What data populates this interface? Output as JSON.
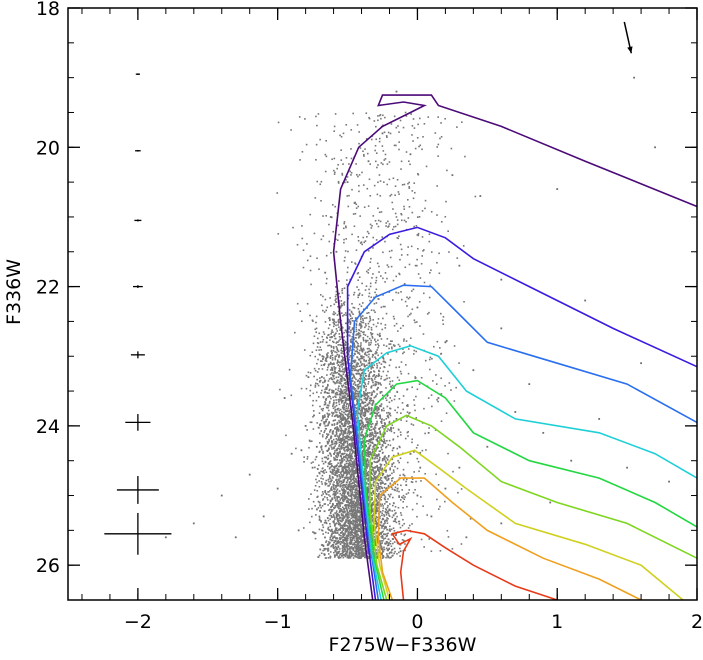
{
  "chart_data": {
    "type": "scatter",
    "title": "",
    "xlabel": "F275W−F336W",
    "ylabel": "F336W",
    "xlim": [
      -2.5,
      2.0
    ],
    "ylim": [
      26.5,
      18.0
    ],
    "y_inverted": true,
    "grid": false,
    "legend": "none",
    "x_ticks": [
      {
        "value": -2,
        "label": "−2"
      },
      {
        "value": -1,
        "label": "−1"
      },
      {
        "value": 0,
        "label": "0"
      },
      {
        "value": 1,
        "label": "1"
      },
      {
        "value": 2,
        "label": "2"
      }
    ],
    "y_ticks": [
      {
        "value": 18,
        "label": "18"
      },
      {
        "value": 20,
        "label": "20"
      },
      {
        "value": 22,
        "label": "22"
      },
      {
        "value": 24,
        "label": "24"
      },
      {
        "value": 26,
        "label": "26"
      }
    ],
    "scatter_points": [
      [
        -0.55,
        24.2
      ],
      [
        -0.62,
        24.8
      ],
      [
        -0.45,
        23.8
      ],
      [
        -0.7,
        25.1
      ],
      [
        -0.38,
        24.5
      ],
      [
        -0.5,
        25.3
      ],
      [
        -0.6,
        23.5
      ],
      [
        -0.42,
        24.0
      ],
      [
        -0.75,
        24.6
      ],
      [
        -0.3,
        24.9
      ],
      [
        -0.2,
        25.2
      ],
      [
        -0.1,
        24.7
      ],
      [
        0.0,
        25.0
      ],
      [
        -0.65,
        22.8
      ],
      [
        -0.55,
        22.3
      ],
      [
        -0.48,
        21.9
      ],
      [
        -0.58,
        21.5
      ],
      [
        -0.45,
        20.8
      ],
      [
        -0.35,
        20.2
      ],
      [
        -0.25,
        19.8
      ],
      [
        -0.8,
        24.0
      ],
      [
        -0.9,
        24.4
      ],
      [
        -1.0,
        24.9
      ],
      [
        -1.1,
        25.3
      ],
      [
        -0.85,
        25.5
      ],
      [
        -0.6,
        25.6
      ],
      [
        -0.4,
        25.7
      ],
      [
        -0.2,
        25.5
      ],
      [
        0.1,
        25.3
      ],
      [
        0.2,
        24.9
      ],
      [
        0.3,
        24.6
      ],
      [
        0.5,
        24.3
      ],
      [
        0.7,
        23.8
      ],
      [
        0.9,
        24.1
      ],
      [
        1.1,
        24.5
      ],
      [
        0.4,
        23.2
      ],
      [
        0.2,
        22.8
      ],
      [
        0.0,
        22.3
      ],
      [
        0.3,
        21.7
      ],
      [
        0.6,
        22.6
      ],
      [
        0.8,
        23.4
      ],
      [
        1.3,
        23.9
      ],
      [
        1.5,
        24.6
      ],
      [
        0.15,
        23.6
      ],
      [
        -0.15,
        23.9
      ],
      [
        -0.3,
        23.3
      ],
      [
        -0.68,
        23.0
      ],
      [
        -0.72,
        24.3
      ],
      [
        -0.52,
        24.6
      ],
      [
        -0.44,
        25.1
      ],
      [
        -0.33,
        24.2
      ],
      [
        -0.25,
        24.0
      ],
      [
        -0.05,
        24.4
      ],
      [
        0.08,
        24.1
      ],
      [
        -0.95,
        23.6
      ],
      [
        -1.2,
        24.7
      ],
      [
        -1.4,
        25.0
      ],
      [
        -1.6,
        25.4
      ],
      [
        -1.8,
        25.6
      ],
      [
        -1.3,
        25.6
      ],
      [
        -0.78,
        23.3
      ],
      [
        -0.66,
        21.8
      ],
      [
        -0.62,
        21.0
      ],
      [
        -0.5,
        20.5
      ],
      [
        0.45,
        20.7
      ],
      [
        1.0,
        20.6
      ],
      [
        1.7,
        20.0
      ],
      [
        1.55,
        19.0
      ],
      [
        -0.15,
        19.2
      ],
      [
        -0.05,
        20.1
      ],
      [
        0.25,
        20.4
      ],
      [
        0.6,
        21.9
      ],
      [
        1.2,
        22.2
      ],
      [
        1.6,
        23.1
      ],
      [
        1.8,
        24.8
      ],
      [
        0.95,
        25.1
      ],
      [
        0.6,
        25.4
      ],
      [
        0.35,
        25.6
      ],
      [
        -0.12,
        25.8
      ],
      [
        -0.35,
        25.9
      ],
      [
        -0.57,
        24.05
      ],
      [
        -0.49,
        24.45
      ],
      [
        -0.41,
        24.65
      ],
      [
        -0.53,
        23.75
      ],
      [
        -0.63,
        24.55
      ],
      [
        -0.36,
        24.15
      ],
      [
        -0.46,
        23.45
      ],
      [
        -0.59,
        25.0
      ],
      [
        -0.7,
        25.35
      ],
      [
        -0.28,
        25.35
      ],
      [
        -0.18,
        24.55
      ],
      [
        -0.08,
        24.85
      ],
      [
        0.02,
        24.6
      ],
      [
        -0.74,
        23.85
      ],
      [
        -0.83,
        24.35
      ],
      [
        -0.66,
        24.95
      ]
    ],
    "isochrones": [
      {
        "color": "#4b0a78",
        "points": [
          [
            -0.32,
            26.5
          ],
          [
            -0.38,
            25.6
          ],
          [
            -0.46,
            24.0
          ],
          [
            -0.55,
            22.5
          ],
          [
            -0.6,
            21.5
          ],
          [
            -0.55,
            20.6
          ],
          [
            -0.42,
            20.0
          ],
          [
            -0.25,
            19.7
          ],
          [
            -0.05,
            19.5
          ],
          [
            0.05,
            19.4
          ],
          [
            -0.1,
            19.35
          ],
          [
            -0.28,
            19.4
          ],
          [
            -0.25,
            19.25
          ],
          [
            0.1,
            19.25
          ],
          [
            0.15,
            19.4
          ],
          [
            0.6,
            19.7
          ],
          [
            1.2,
            20.2
          ],
          [
            2.0,
            20.85
          ]
        ]
      },
      {
        "color": "#3a1be0",
        "points": [
          [
            -0.3,
            26.5
          ],
          [
            -0.36,
            25.6
          ],
          [
            -0.43,
            24.3
          ],
          [
            -0.5,
            23.0
          ],
          [
            -0.5,
            22.0
          ],
          [
            -0.38,
            21.5
          ],
          [
            -0.2,
            21.25
          ],
          [
            0.0,
            21.15
          ],
          [
            0.2,
            21.3
          ],
          [
            0.4,
            21.6
          ],
          [
            0.8,
            22.0
          ],
          [
            1.4,
            22.6
          ],
          [
            2.0,
            23.15
          ]
        ]
      },
      {
        "color": "#2a6ff0",
        "points": [
          [
            -0.28,
            26.5
          ],
          [
            -0.34,
            25.7
          ],
          [
            -0.41,
            24.5
          ],
          [
            -0.48,
            23.3
          ],
          [
            -0.45,
            22.5
          ],
          [
            -0.3,
            22.15
          ],
          [
            -0.1,
            21.98
          ],
          [
            0.1,
            22.0
          ],
          [
            0.25,
            22.3
          ],
          [
            0.5,
            22.8
          ],
          [
            1.0,
            23.1
          ],
          [
            1.5,
            23.4
          ],
          [
            2.0,
            23.95
          ]
        ]
      },
      {
        "color": "#1ecfd8",
        "points": [
          [
            -0.26,
            26.5
          ],
          [
            -0.33,
            25.8
          ],
          [
            -0.39,
            24.7
          ],
          [
            -0.43,
            23.8
          ],
          [
            -0.38,
            23.2
          ],
          [
            -0.22,
            22.95
          ],
          [
            -0.05,
            22.85
          ],
          [
            0.15,
            23.0
          ],
          [
            0.35,
            23.5
          ],
          [
            0.7,
            23.9
          ],
          [
            1.3,
            24.1
          ],
          [
            1.7,
            24.4
          ],
          [
            2.0,
            24.75
          ]
        ]
      },
      {
        "color": "#22d840",
        "points": [
          [
            -0.24,
            26.5
          ],
          [
            -0.31,
            25.9
          ],
          [
            -0.37,
            24.9
          ],
          [
            -0.38,
            24.2
          ],
          [
            -0.3,
            23.7
          ],
          [
            -0.15,
            23.4
          ],
          [
            0.0,
            23.35
          ],
          [
            0.2,
            23.6
          ],
          [
            0.4,
            24.1
          ],
          [
            0.8,
            24.5
          ],
          [
            1.3,
            24.75
          ],
          [
            1.7,
            25.1
          ],
          [
            2.0,
            25.45
          ]
        ]
      },
      {
        "color": "#7ed620",
        "points": [
          [
            -0.22,
            26.5
          ],
          [
            -0.29,
            26.0
          ],
          [
            -0.34,
            25.2
          ],
          [
            -0.34,
            24.5
          ],
          [
            -0.22,
            24.0
          ],
          [
            -0.08,
            23.85
          ],
          [
            0.1,
            24.0
          ],
          [
            0.3,
            24.3
          ],
          [
            0.6,
            24.8
          ],
          [
            1.0,
            25.1
          ],
          [
            1.5,
            25.4
          ],
          [
            2.0,
            25.9
          ]
        ]
      },
      {
        "color": "#d0d020",
        "points": [
          [
            -0.2,
            26.5
          ],
          [
            -0.27,
            26.0
          ],
          [
            -0.31,
            25.4
          ],
          [
            -0.3,
            24.8
          ],
          [
            -0.18,
            24.45
          ],
          [
            -0.02,
            24.35
          ],
          [
            0.15,
            24.6
          ],
          [
            0.35,
            24.9
          ],
          [
            0.7,
            25.4
          ],
          [
            1.2,
            25.7
          ],
          [
            1.6,
            26.0
          ],
          [
            1.9,
            26.5
          ]
        ]
      },
      {
        "color": "#f0a020",
        "points": [
          [
            -0.18,
            26.5
          ],
          [
            -0.25,
            26.1
          ],
          [
            -0.28,
            25.6
          ],
          [
            -0.27,
            25.0
          ],
          [
            -0.12,
            24.75
          ],
          [
            0.05,
            24.75
          ],
          [
            0.25,
            25.1
          ],
          [
            0.5,
            25.5
          ],
          [
            0.9,
            25.9
          ],
          [
            1.3,
            26.2
          ],
          [
            1.6,
            26.5
          ]
        ]
      },
      {
        "color": "#e83a18",
        "points": [
          [
            -0.1,
            26.5
          ],
          [
            -0.12,
            26.1
          ],
          [
            -0.1,
            25.8
          ],
          [
            -0.05,
            25.62
          ],
          [
            -0.13,
            25.7
          ],
          [
            -0.18,
            25.55
          ],
          [
            -0.08,
            25.5
          ],
          [
            0.05,
            25.55
          ],
          [
            0.2,
            25.75
          ],
          [
            0.4,
            26.0
          ],
          [
            0.7,
            26.3
          ],
          [
            1.0,
            26.5
          ]
        ]
      }
    ],
    "error_bars": [
      {
        "x": -2.0,
        "y": 18.95,
        "xerr": 0.015,
        "yerr": 0.01
      },
      {
        "x": -2.0,
        "y": 20.05,
        "xerr": 0.02,
        "yerr": 0.01
      },
      {
        "x": -2.0,
        "y": 21.05,
        "xerr": 0.025,
        "yerr": 0.015
      },
      {
        "x": -2.0,
        "y": 22.0,
        "xerr": 0.035,
        "yerr": 0.02
      },
      {
        "x": -2.0,
        "y": 22.98,
        "xerr": 0.05,
        "yerr": 0.05
      },
      {
        "x": -2.0,
        "y": 23.95,
        "xerr": 0.09,
        "yerr": 0.12
      },
      {
        "x": -2.0,
        "y": 24.92,
        "xerr": 0.15,
        "yerr": 0.2
      },
      {
        "x": -2.0,
        "y": 25.55,
        "xerr": 0.24,
        "yerr": 0.3
      }
    ],
    "reddening_arrow": {
      "from": [
        1.48,
        18.2
      ],
      "to": [
        1.53,
        18.65
      ]
    }
  }
}
